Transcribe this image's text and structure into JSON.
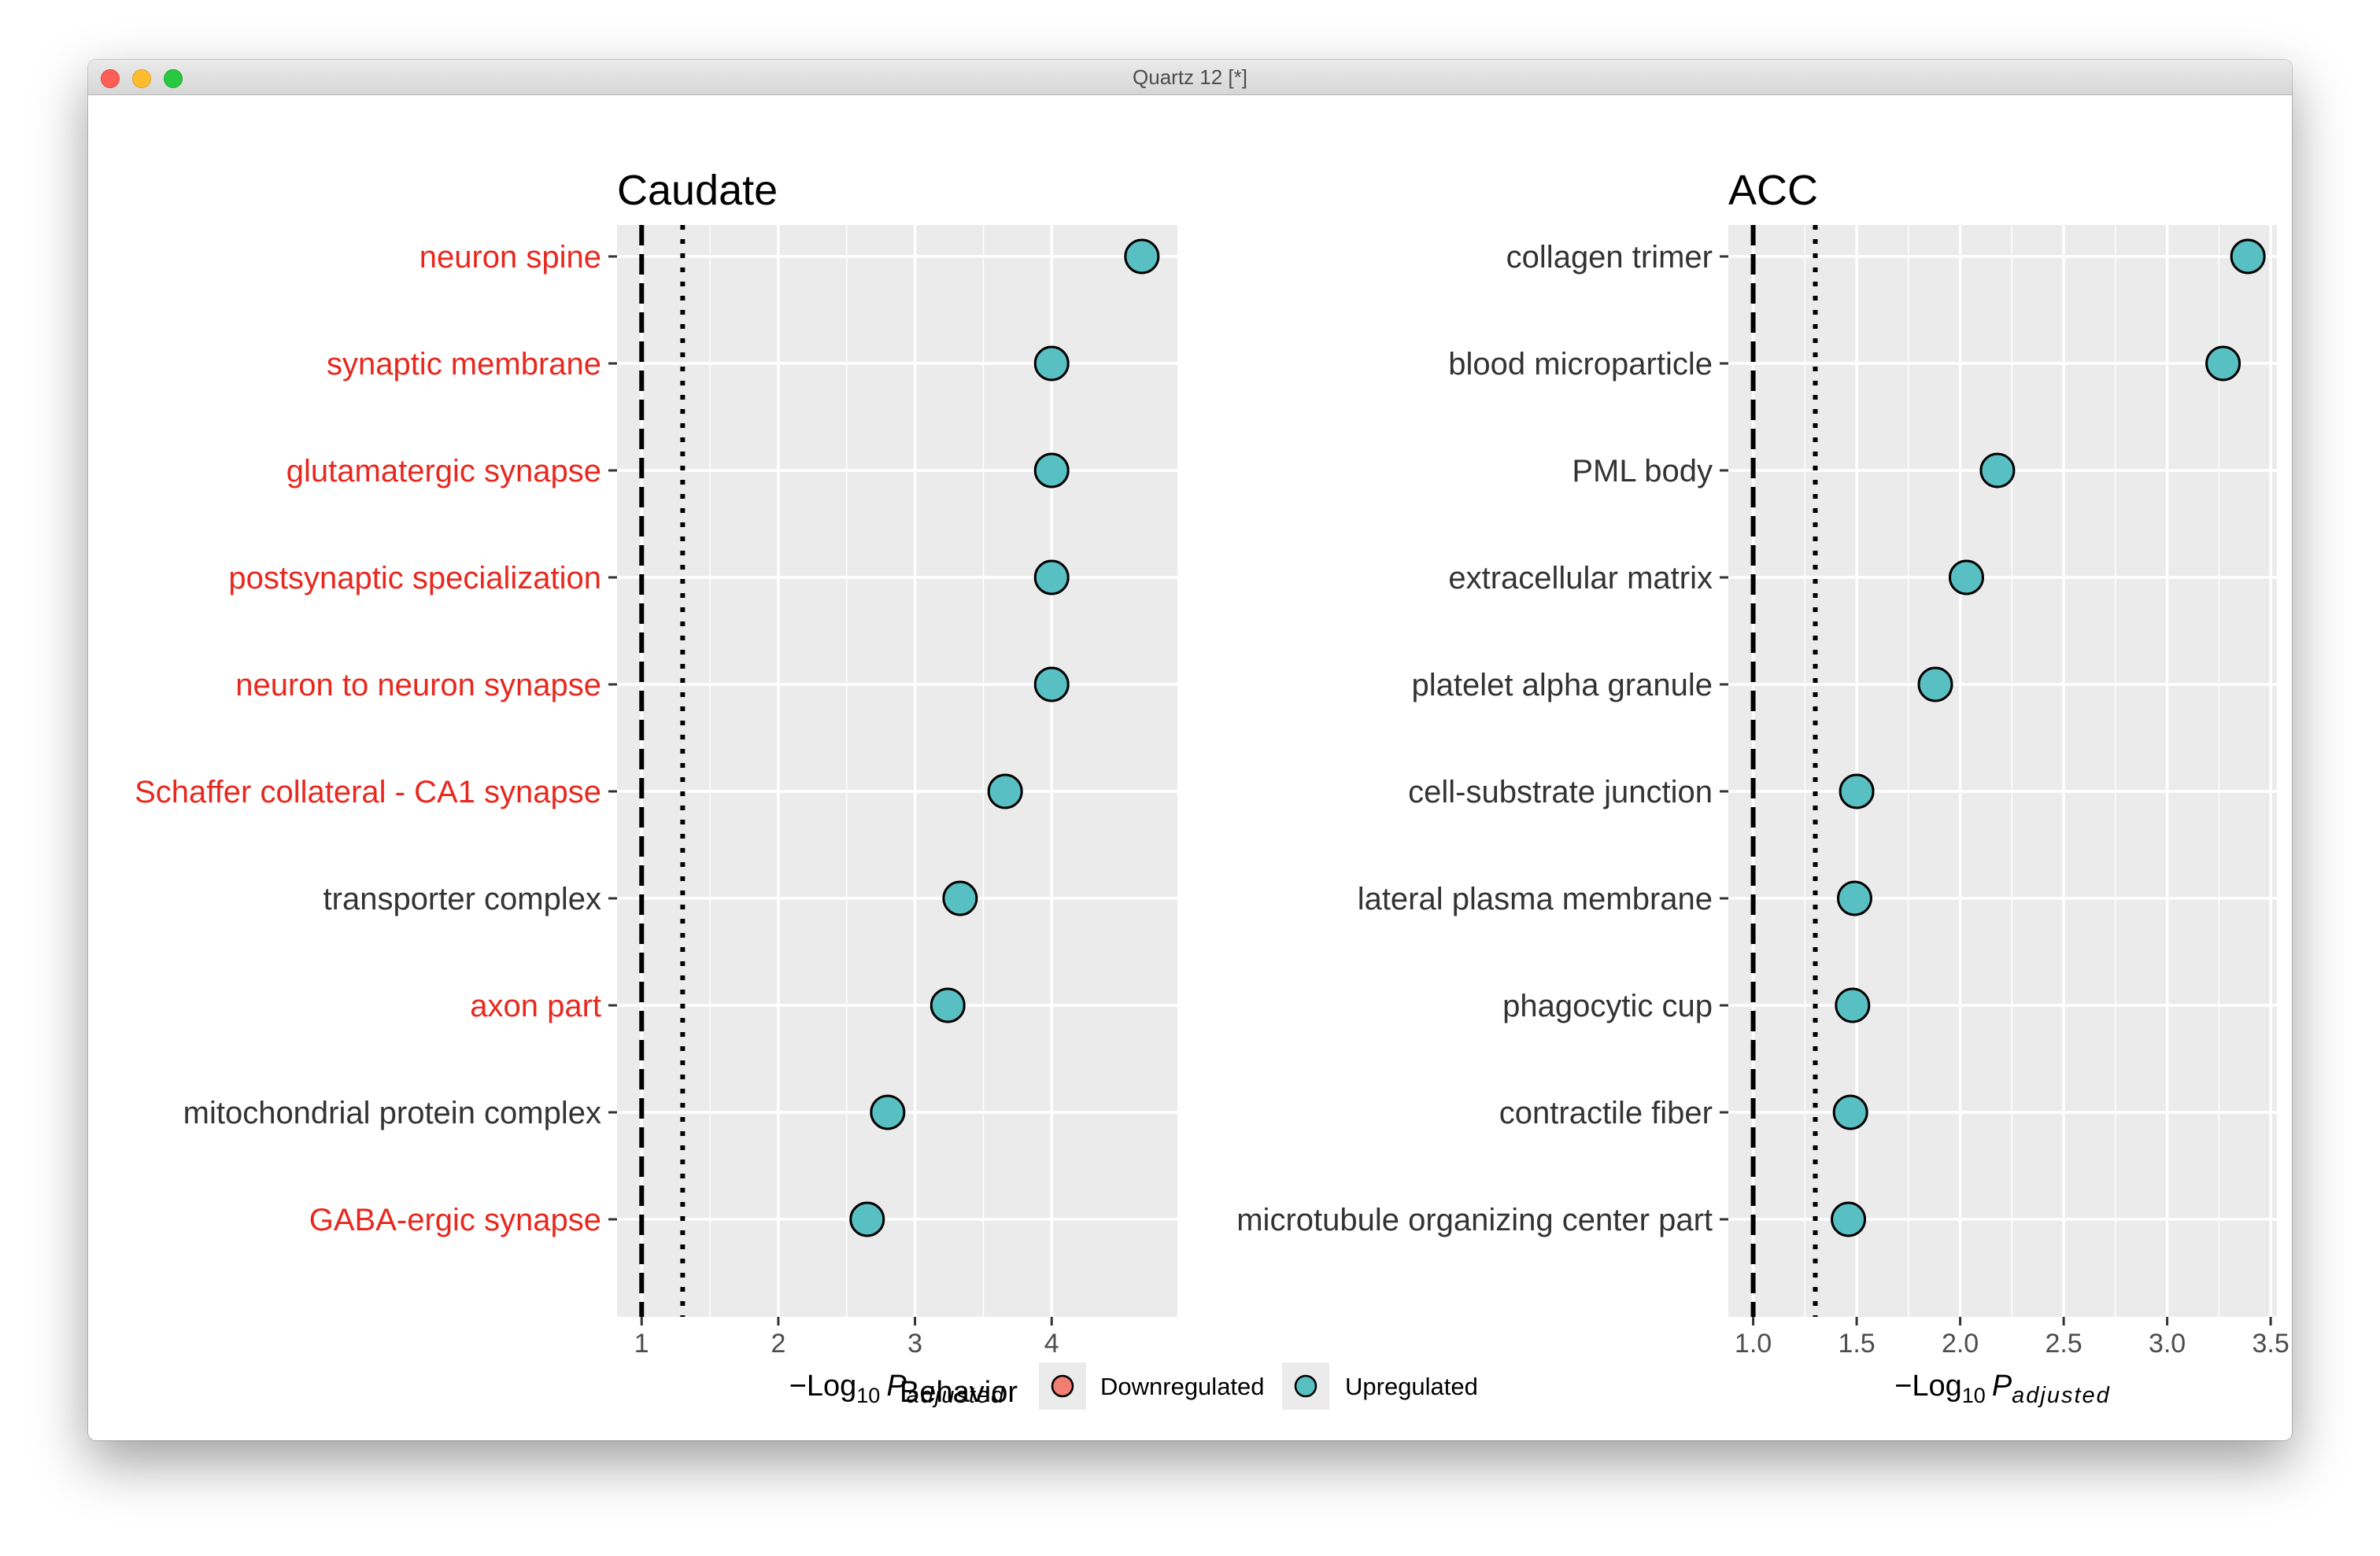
{
  "window": {
    "title": "Quartz 12 [*]"
  },
  "colors": {
    "highlight_label": "#e8281e",
    "normal_label": "#333333",
    "upregulated": "#58bfc3",
    "downregulated": "#f07e72",
    "panel_bg": "#ebebeb",
    "grid": "#ffffff"
  },
  "chart_data": [
    {
      "type": "scatter",
      "title": "Caudate",
      "xlabel": {
        "prefix": "−Log",
        "sub": "10",
        "var": "P",
        "varsub": "adjusted"
      },
      "xlim": [
        0.82,
        4.92
      ],
      "xticks": [
        1,
        2,
        3,
        4
      ],
      "xtick_labels": [
        "1",
        "2",
        "3",
        "4"
      ],
      "reference_lines": [
        {
          "x": 1.0,
          "style": "dashed"
        },
        {
          "x": 1.3,
          "style": "dotted"
        }
      ],
      "categories": [
        {
          "label": "neuron spine",
          "value": 4.66,
          "behavior": "Upregulated",
          "highlight": true
        },
        {
          "label": "synaptic membrane",
          "value": 4.0,
          "behavior": "Upregulated",
          "highlight": true
        },
        {
          "label": "glutamatergic synapse",
          "value": 4.0,
          "behavior": "Upregulated",
          "highlight": true
        },
        {
          "label": "postsynaptic specialization",
          "value": 4.0,
          "behavior": "Upregulated",
          "highlight": true
        },
        {
          "label": "neuron to neuron synapse",
          "value": 4.0,
          "behavior": "Upregulated",
          "highlight": true
        },
        {
          "label": "Schaffer collateral - CA1 synapse",
          "value": 3.66,
          "behavior": "Upregulated",
          "highlight": true
        },
        {
          "label": "transporter complex",
          "value": 3.33,
          "behavior": "Upregulated",
          "highlight": false
        },
        {
          "label": "axon part",
          "value": 3.24,
          "behavior": "Upregulated",
          "highlight": true
        },
        {
          "label": "mitochondrial protein complex",
          "value": 2.8,
          "behavior": "Upregulated",
          "highlight": false
        },
        {
          "label": "GABA-ergic synapse",
          "value": 2.65,
          "behavior": "Upregulated",
          "highlight": true
        }
      ]
    },
    {
      "type": "scatter",
      "title": "ACC",
      "xlabel": {
        "prefix": "−Log",
        "sub": "10",
        "var": "P",
        "varsub": "adjusted"
      },
      "xlim": [
        0.88,
        3.53
      ],
      "xticks": [
        1.0,
        1.5,
        2.0,
        2.5,
        3.0,
        3.5
      ],
      "xtick_labels": [
        "1.0",
        "1.5",
        "2.0",
        "2.5",
        "3.0",
        "3.5"
      ],
      "reference_lines": [
        {
          "x": 1.0,
          "style": "dashed"
        },
        {
          "x": 1.3,
          "style": "dotted"
        }
      ],
      "categories": [
        {
          "label": "collagen trimer",
          "value": 3.39,
          "behavior": "Upregulated",
          "highlight": false
        },
        {
          "label": "blood microparticle",
          "value": 3.27,
          "behavior": "Upregulated",
          "highlight": false
        },
        {
          "label": "PML body",
          "value": 2.18,
          "behavior": "Upregulated",
          "highlight": false
        },
        {
          "label": "extracellular matrix",
          "value": 2.03,
          "behavior": "Upregulated",
          "highlight": false
        },
        {
          "label": "platelet alpha granule",
          "value": 1.88,
          "behavior": "Upregulated",
          "highlight": false
        },
        {
          "label": "cell-substrate junction",
          "value": 1.5,
          "behavior": "Upregulated",
          "highlight": false
        },
        {
          "label": "lateral plasma membrane",
          "value": 1.49,
          "behavior": "Upregulated",
          "highlight": false
        },
        {
          "label": "phagocytic cup",
          "value": 1.48,
          "behavior": "Upregulated",
          "highlight": false
        },
        {
          "label": "contractile fiber",
          "value": 1.47,
          "behavior": "Upregulated",
          "highlight": false
        },
        {
          "label": "microtubule organizing center part",
          "value": 1.46,
          "behavior": "Upregulated",
          "highlight": false
        }
      ]
    }
  ],
  "legend": {
    "title": "Behavior",
    "placement": "bottom",
    "items": [
      {
        "label": "Downregulated",
        "color": "#f07e72"
      },
      {
        "label": "Upregulated",
        "color": "#58bfc3"
      }
    ]
  }
}
